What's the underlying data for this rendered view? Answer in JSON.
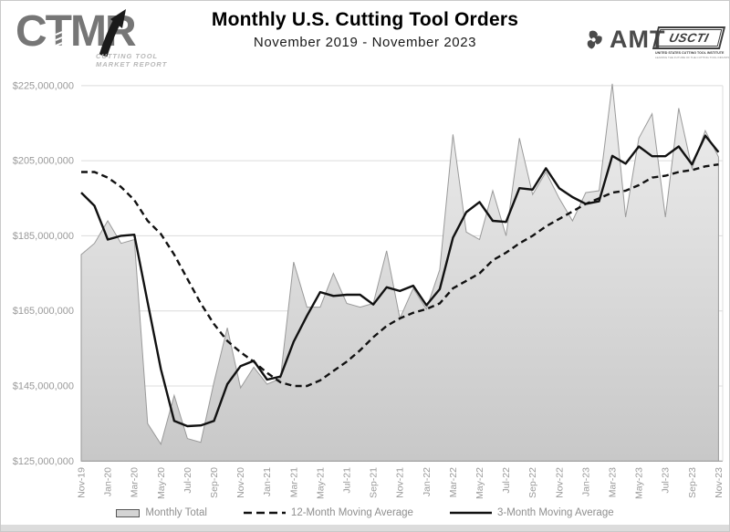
{
  "header": {
    "logo": {
      "text": "CTMR",
      "sub_line1": "CUTTING TOOL",
      "sub_line2": "MARKET REPORT"
    },
    "title": "Monthly U.S. Cutting Tool Orders",
    "subtitle": "November 2019 - November 2023",
    "amt_label": "AMT",
    "uscti": {
      "label": "USCTI",
      "line1": "UNITED STATES CUTTING TOOL INSTITUTE",
      "line2": "LEADING THE FUTURE OF THE CUTTING TOOL INDUSTRY"
    }
  },
  "chart_data": {
    "type": "area",
    "title": "Monthly U.S. Cutting Tool Orders",
    "subtitle": "November 2019 - November 2023",
    "unit": "USD, values in millions",
    "grid": "horizontal",
    "legend_position": "bottom",
    "ylim_millions": [
      125,
      225
    ],
    "y_tick_values_millions": [
      225,
      205,
      185,
      165,
      145,
      125
    ],
    "y_tick_labels": [
      "$225,000,000",
      "$205,000,000",
      "$185,000,000",
      "$165,000,000",
      "$145,000,000",
      "$125,000,000"
    ],
    "x": [
      "Nov-19",
      "Dec-19",
      "Jan-20",
      "Feb-20",
      "Mar-20",
      "Apr-20",
      "May-20",
      "Jun-20",
      "Jul-20",
      "Aug-20",
      "Sep-20",
      "Oct-20",
      "Nov-20",
      "Dec-20",
      "Jan-21",
      "Feb-21",
      "Mar-21",
      "Apr-21",
      "May-21",
      "Jun-21",
      "Jul-21",
      "Aug-21",
      "Sep-21",
      "Oct-21",
      "Nov-21",
      "Dec-21",
      "Jan-22",
      "Feb-22",
      "Mar-22",
      "Apr-22",
      "May-22",
      "Jun-22",
      "Jul-22",
      "Aug-22",
      "Sep-22",
      "Oct-22",
      "Nov-22",
      "Dec-22",
      "Jan-23",
      "Feb-23",
      "Mar-23",
      "Apr-23",
      "May-23",
      "Jun-23",
      "Jul-23",
      "Aug-23",
      "Sep-23",
      "Oct-23",
      "Nov-23"
    ],
    "x_axis_labels_shown": [
      "Nov-19",
      "Jan-20",
      "Mar-20",
      "May-20",
      "Jul-20",
      "Sep-20",
      "Nov-20",
      "Jan-21",
      "Mar-21",
      "May-21",
      "Jul-21",
      "Sep-21",
      "Nov-21",
      "Jan-22",
      "Mar-22",
      "May-22",
      "Jul-22",
      "Sep-22",
      "Nov-22",
      "Jan-23",
      "Mar-23",
      "May-23",
      "Jul-23",
      "Sep-23",
      "Nov-23"
    ],
    "series": [
      {
        "name": "Monthly Total",
        "style": "area",
        "fill_top": "#eeeeee",
        "fill_bottom": "#c8c8c8",
        "stroke": "#9a9a9a",
        "values": [
          180,
          183,
          189,
          183,
          184,
          135,
          129.5,
          142.5,
          131,
          130,
          146,
          160.5,
          144.5,
          150,
          145.5,
          147,
          178,
          166,
          166,
          175,
          167,
          166,
          167,
          181,
          163,
          171,
          165.5,
          176,
          212,
          186,
          184,
          197,
          185,
          211,
          196,
          202,
          195,
          189,
          196.5,
          197,
          225.5,
          190,
          211,
          217.5,
          190,
          219,
          203,
          213,
          206
        ]
      },
      {
        "name": "12-Month Moving Average",
        "style": "dashed-line",
        "color": "#111111",
        "values": [
          202,
          202,
          200.5,
          198,
          194.5,
          189,
          185.5,
          180,
          173.5,
          167,
          161.5,
          157,
          154,
          151.5,
          148.5,
          146,
          145,
          145,
          146.5,
          149,
          151.5,
          154.5,
          158,
          161,
          163,
          164.5,
          165.5,
          167,
          171,
          173,
          175,
          178.5,
          180.5,
          183,
          185,
          187.5,
          189.5,
          191.5,
          193.5,
          195,
          196.5,
          197,
          198.5,
          200.5,
          201,
          202,
          202.5,
          203.5,
          204
        ]
      },
      {
        "name": "3-Month Moving Average",
        "style": "solid-line",
        "color": "#111111",
        "values": [
          196.5,
          193,
          184,
          185,
          185.3,
          167.3,
          149.5,
          135.7,
          134.3,
          134.5,
          135.7,
          145.5,
          150.3,
          151.7,
          146.7,
          147.5,
          156.8,
          163.7,
          170,
          169,
          169.3,
          169.3,
          166.7,
          171.3,
          170.3,
          171.7,
          166.5,
          170.8,
          184.5,
          191.3,
          194,
          189,
          188.7,
          197.7,
          197.3,
          203,
          197.7,
          195.3,
          193.5,
          194.2,
          206.3,
          204.2,
          208.8,
          206.2,
          206.2,
          208.8,
          204,
          211.7,
          207.3
        ]
      }
    ]
  },
  "colors": {
    "grid": "#dcdcdc",
    "axis_baseline": "#8c8c8c",
    "axis_labels": "#9a9a9a",
    "legend_text": "#8f8f8f",
    "page_border": "#c9c9c9",
    "bottom_strip": "#dcdcdc",
    "logo_gray": "#767676",
    "line_black": "#111111"
  }
}
